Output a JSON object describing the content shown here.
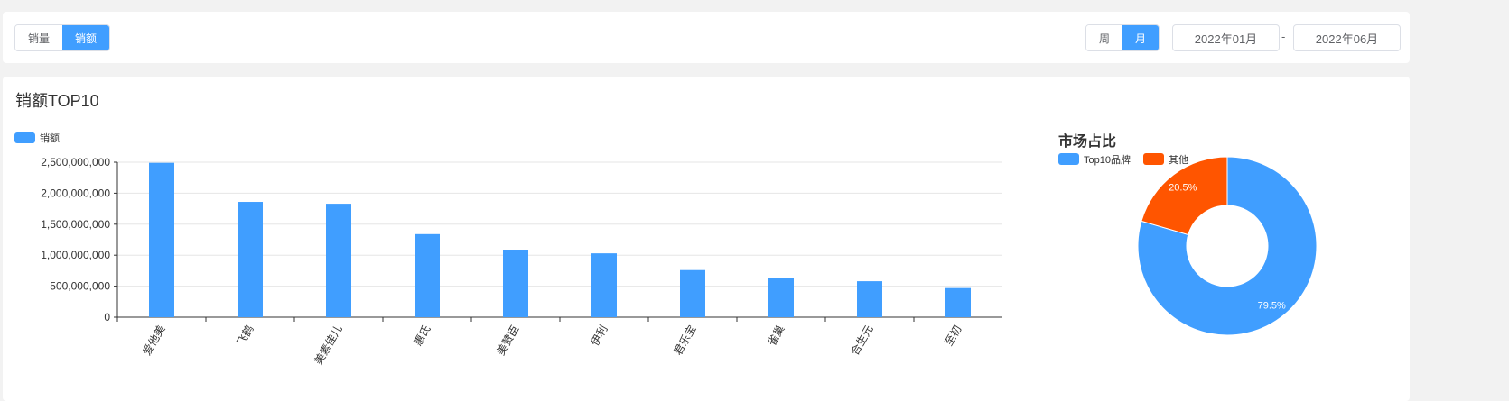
{
  "toolbar": {
    "metric_tabs": [
      "销量",
      "销额"
    ],
    "metric_active": 1,
    "period_tabs": [
      "周",
      "月"
    ],
    "period_active": 1,
    "date_start": "2022年01月",
    "date_sep": "-",
    "date_end": "2022年06月"
  },
  "section_title": "销额TOP10",
  "colors": {
    "accent": "#409eff",
    "bar": "#409eff",
    "other": "#ff5500"
  },
  "chart_data": [
    {
      "type": "bar",
      "legend": [
        "销额"
      ],
      "categories": [
        "爱他美",
        "飞鹤",
        "美素佳儿",
        "惠氏",
        "美赞臣",
        "伊利",
        "君乐宝",
        "雀巢",
        "合生元",
        "至初"
      ],
      "values": [
        2490000000,
        1860000000,
        1830000000,
        1340000000,
        1090000000,
        1030000000,
        760000000,
        630000000,
        580000000,
        470000000
      ],
      "ylim": [
        0,
        2500000000
      ],
      "yticks": [
        "0",
        "500,000,000",
        "1,000,000,000",
        "1,500,000,000",
        "2,000,000,000",
        "2,500,000,000"
      ],
      "grid": true,
      "legend_position": "top-left"
    },
    {
      "type": "pie",
      "title": "市场占比",
      "legend": [
        "Top10品牌",
        "其他"
      ],
      "values": [
        79.5,
        20.5
      ],
      "labels": [
        "79.5%",
        "20.5%"
      ],
      "donut": true,
      "legend_position": "top-left"
    }
  ]
}
